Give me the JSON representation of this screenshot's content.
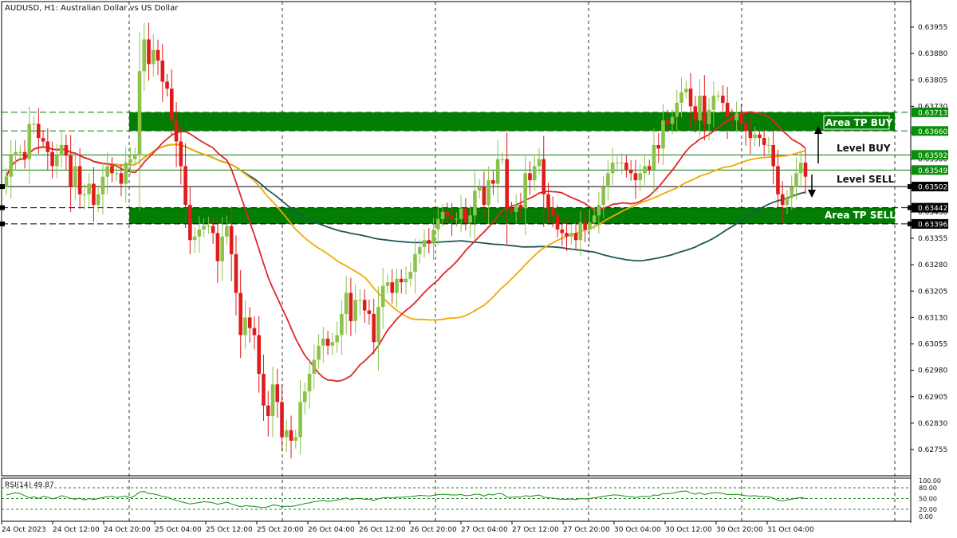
{
  "title": "AUDUSD, H1:  Australian Dollar vs US Dollar",
  "rsi_label": "RSI(14) 49.87",
  "colors": {
    "bull": "#8bc34a",
    "bear": "#e01b1b",
    "zone": "#037d03",
    "ma_red": "#e02828",
    "ma_orange": "#f2a900",
    "ma_teal": "#1e5959",
    "rsi": "#1a8a1a"
  },
  "chart_data": {
    "type": "candlestick",
    "symbol": "AUDUSD",
    "timeframe": "H1",
    "ylim": [
      0.627,
      0.6399
    ],
    "price_ticks": [
      "0.63955",
      "0.63880",
      "0.63805",
      "0.63730",
      "0.63655",
      "0.63580",
      "0.63505",
      "0.63430",
      "0.63355",
      "0.63280",
      "0.63205",
      "0.63130",
      "0.63055",
      "0.62980",
      "0.62905",
      "0.62830",
      "0.62755"
    ],
    "time_labels": [
      "24 Oct 2023",
      "24 Oct 12:00",
      "24 Oct 20:00",
      "25 Oct 04:00",
      "25 Oct 12:00",
      "25 Oct 20:00",
      "26 Oct 04:00",
      "26 Oct 12:00",
      "26 Oct 20:00",
      "27 Oct 04:00",
      "27 Oct 12:00",
      "27 Oct 20:00",
      "30 Oct 04:00",
      "30 Oct 12:00",
      "30 Oct 20:00",
      "31 Oct 04:00"
    ],
    "closes": [
      0.6353,
      0.6359,
      0.636,
      0.636,
      0.6358,
      0.6368,
      0.6368,
      0.6364,
      0.6363,
      0.636,
      0.6356,
      0.6359,
      0.6362,
      0.6359,
      0.635,
      0.6356,
      0.6348,
      0.6348,
      0.6351,
      0.6345,
      0.6348,
      0.6353,
      0.6356,
      0.6354,
      0.6354,
      0.6351,
      0.6357,
      0.6358,
      0.6359,
      0.6383,
      0.6392,
      0.6385,
      0.6389,
      0.6386,
      0.638,
      0.6378,
      0.6369,
      0.6363,
      0.6356,
      0.6345,
      0.6335,
      0.6336,
      0.6338,
      0.6339,
      0.6339,
      0.6337,
      0.6329,
      0.6336,
      0.6339,
      0.6331,
      0.632,
      0.6308,
      0.6313,
      0.631,
      0.6308,
      0.6297,
      0.6288,
      0.6285,
      0.6294,
      0.6289,
      0.6279,
      0.6281,
      0.6278,
      0.6279,
      0.6289,
      0.6292,
      0.6297,
      0.6301,
      0.6305,
      0.6307,
      0.6305,
      0.6306,
      0.6308,
      0.6314,
      0.632,
      0.6312,
      0.6318,
      0.6318,
      0.6315,
      0.6314,
      0.6306,
      0.6316,
      0.6322,
      0.6323,
      0.632,
      0.6324,
      0.6323,
      0.6324,
      0.6326,
      0.6331,
      0.6333,
      0.6335,
      0.6334,
      0.6338,
      0.6341,
      0.6343,
      0.6342,
      0.6341,
      0.6341,
      0.6344,
      0.634,
      0.6342,
      0.6349,
      0.635,
      0.6345,
      0.6352,
      0.6351,
      0.6358,
      0.6358,
      0.6344,
      0.6343,
      0.6345,
      0.6344,
      0.6354,
      0.6352,
      0.6356,
      0.6358,
      0.6348,
      0.6344,
      0.6342,
      0.6338,
      0.6337,
      0.6336,
      0.6337,
      0.6335,
      0.634,
      0.6338,
      0.634,
      0.6342,
      0.6345,
      0.635,
      0.6354,
      0.6357,
      0.6357,
      0.6357,
      0.6355,
      0.6354,
      0.6352,
      0.6354,
      0.6356,
      0.6355,
      0.6362,
      0.6361,
      0.6369,
      0.6368,
      0.637,
      0.6374,
      0.6377,
      0.6378,
      0.6373,
      0.6369,
      0.6376,
      0.6368,
      0.6372,
      0.6376,
      0.6376,
      0.6374,
      0.637,
      0.6369,
      0.6371,
      0.6368,
      0.6366,
      0.6364,
      0.6365,
      0.6364,
      0.6362,
      0.6362,
      0.6356,
      0.6348,
      0.6345,
      0.6347,
      0.635,
      0.6354,
      0.6357,
      0.6353
    ],
    "levels": [
      {
        "label": "0.63713",
        "value": 0.63713,
        "style": "dashed",
        "tag": "green"
      },
      {
        "label": "0.63660",
        "value": 0.6366,
        "style": "dashed",
        "tag": "green"
      },
      {
        "label": "0.63592",
        "value": 0.63592,
        "style": "solid",
        "tag": "green"
      },
      {
        "label": "0.63549",
        "value": 0.63549,
        "style": "solid",
        "tag": "green"
      },
      {
        "label": "0.63502",
        "value": 0.63502,
        "style": "solid",
        "tag": "black"
      },
      {
        "label": "0.63442",
        "value": 0.63442,
        "style": "dashed",
        "tag": "black"
      },
      {
        "label": "0.63396",
        "value": 0.63396,
        "style": "dashed",
        "tag": "black"
      }
    ],
    "zones": [
      {
        "label": "Area TP BUY",
        "from": 0.6366,
        "to": 0.63713
      },
      {
        "label": "Area TP SELL",
        "from": 0.63396,
        "to": 0.63442
      }
    ],
    "annotations": [
      {
        "label": "Level BUY",
        "direction": "up"
      },
      {
        "label": "Level SELL",
        "direction": "down"
      }
    ],
    "rsi": {
      "ticks": [
        "100.00",
        "80.00",
        "50.00",
        "20.00",
        "0.00"
      ],
      "values": [
        60,
        63,
        66,
        64,
        58,
        52,
        55,
        50,
        56,
        54,
        49,
        52,
        58,
        55,
        50,
        48,
        51,
        46,
        50,
        47,
        50,
        53,
        55,
        56,
        53,
        55,
        57,
        52,
        58,
        68,
        70,
        64,
        63,
        60,
        56,
        54,
        49,
        45,
        41,
        38,
        35,
        37,
        39,
        41,
        40,
        38,
        34,
        37,
        40,
        35,
        31,
        27,
        30,
        29,
        28,
        26,
        25,
        27,
        32,
        31,
        27,
        29,
        28,
        30,
        33,
        36,
        38,
        41,
        43,
        45,
        42,
        44,
        46,
        48,
        52,
        47,
        50,
        50,
        48,
        48,
        45,
        49,
        52,
        53,
        51,
        54,
        53,
        55,
        55,
        57,
        59,
        58,
        57,
        59,
        61,
        62,
        61,
        60,
        60,
        61,
        58,
        59,
        62,
        62,
        57,
        62,
        60,
        64,
        63,
        54,
        53,
        55,
        54,
        58,
        56,
        58,
        60,
        54,
        52,
        51,
        49,
        48,
        48,
        49,
        47,
        50,
        49,
        50,
        52,
        54,
        56,
        58,
        60,
        60,
        58,
        56,
        55,
        53,
        55,
        56,
        55,
        60,
        59,
        64,
        63,
        65,
        68,
        70,
        71,
        66,
        62,
        66,
        61,
        64,
        66,
        66,
        64,
        61,
        61,
        62,
        60,
        58,
        57,
        58,
        56,
        55,
        55,
        51,
        45,
        44,
        46,
        48,
        51,
        53,
        50
      ]
    }
  },
  "annotations_text": {
    "tp_buy": "Area TP BUY",
    "tp_sell": "Area TP SELL",
    "level_buy": "Level BUY",
    "level_sell": "Level SELL"
  }
}
